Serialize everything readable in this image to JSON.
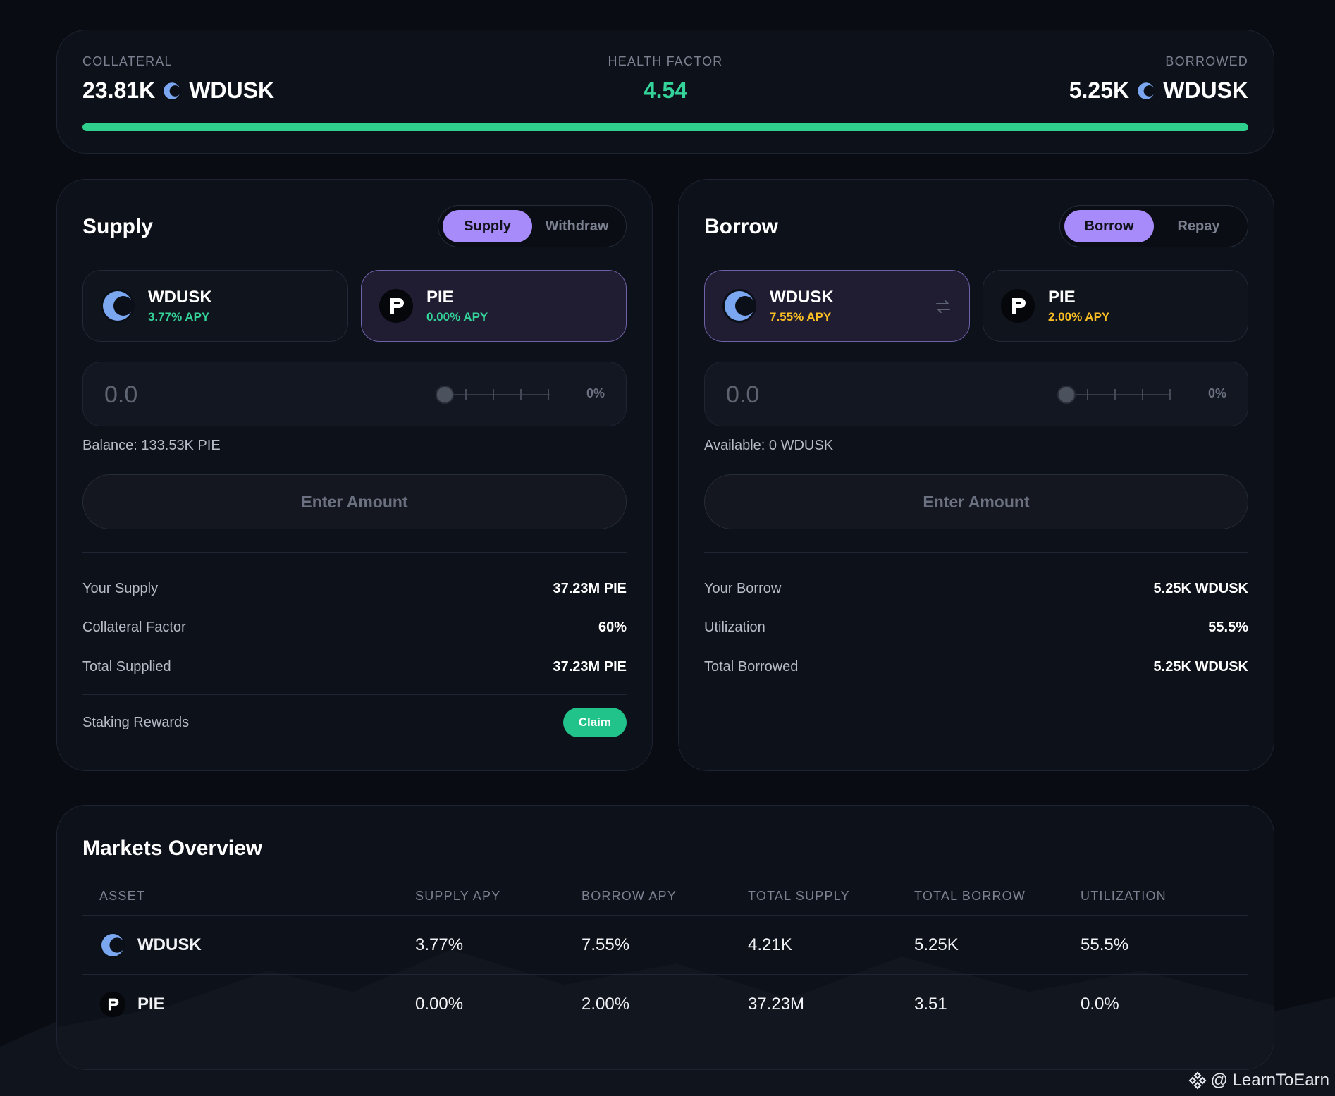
{
  "stats": {
    "collateral_label": "COLLATERAL",
    "collateral_value": "23.81K",
    "collateral_token": "WDUSK",
    "health_label": "HEALTH FACTOR",
    "health_value": "4.54",
    "health_bar_fill": 1.0,
    "borrowed_label": "BORROWED",
    "borrowed_value": "5.25K",
    "borrowed_token": "WDUSK"
  },
  "supply": {
    "title": "Supply",
    "tabs": [
      {
        "label": "Supply",
        "active": true
      },
      {
        "label": "Withdraw",
        "active": false
      }
    ],
    "assets": [
      {
        "name": "WDUSK",
        "apy": "3.77% APY",
        "icon": "moon-coin-icon",
        "selected": false
      },
      {
        "name": "PIE",
        "apy": "0.00% APY",
        "icon": "pie-coin-icon",
        "selected": true
      }
    ],
    "amount_placeholder": "0.0",
    "percent": "0%",
    "balance": "Balance: 133.53K PIE",
    "action_label": "Enter Amount",
    "info": [
      {
        "label": "Your Supply",
        "value": "37.23M PIE"
      },
      {
        "label": "Collateral Factor",
        "value": "60%"
      },
      {
        "label": "Total Supplied",
        "value": "37.23M PIE"
      }
    ],
    "rewards_label": "Staking Rewards",
    "claim_label": "Claim"
  },
  "borrow": {
    "title": "Borrow",
    "tabs": [
      {
        "label": "Borrow",
        "active": true
      },
      {
        "label": "Repay",
        "active": false
      }
    ],
    "assets": [
      {
        "name": "WDUSK",
        "apy": "7.55% APY",
        "icon": "moon-coin-icon",
        "selected": true
      },
      {
        "name": "PIE",
        "apy": "2.00% APY",
        "icon": "pie-coin-icon",
        "selected": false
      }
    ],
    "amount_placeholder": "0.0",
    "percent": "0%",
    "available": "Available: 0 WDUSK",
    "action_label": "Enter Amount",
    "info": [
      {
        "label": "Your Borrow",
        "value": "5.25K WDUSK"
      },
      {
        "label": "Utilization",
        "value": "55.5%"
      },
      {
        "label": "Total Borrowed",
        "value": "5.25K WDUSK"
      }
    ]
  },
  "markets": {
    "title": "Markets Overview",
    "columns": [
      "ASSET",
      "SUPPLY APY",
      "BORROW APY",
      "TOTAL SUPPLY",
      "TOTAL BORROW",
      "UTILIZATION"
    ],
    "rows": [
      {
        "asset": "WDUSK",
        "supply_apy": "3.77%",
        "borrow_apy": "7.55%",
        "total_supply": "4.21K",
        "total_borrow": "5.25K",
        "utilization": "55.5%"
      },
      {
        "asset": "PIE",
        "supply_apy": "0.00%",
        "borrow_apy": "2.00%",
        "total_supply": "37.23M",
        "total_borrow": "3.51",
        "utilization": "0.0%"
      }
    ]
  },
  "watermark": "@ LearnToEarn",
  "colors": {
    "accent": "#a78bfa",
    "positive": "#34d399",
    "warning": "#fbbf24",
    "background": "#090c13"
  }
}
